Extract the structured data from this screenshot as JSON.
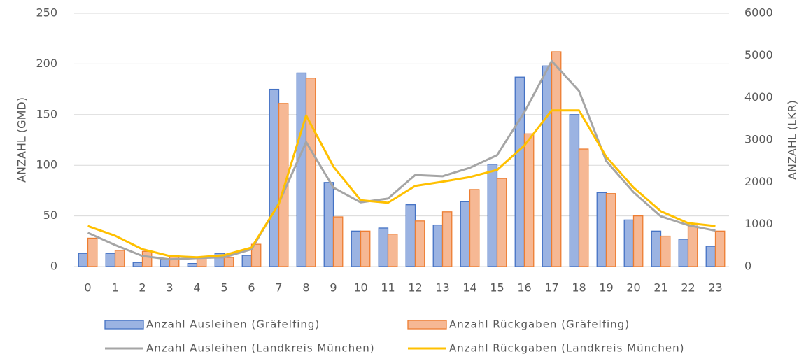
{
  "chart_data": {
    "type": "bar",
    "categories": [
      "0",
      "1",
      "2",
      "3",
      "4",
      "5",
      "6",
      "7",
      "8",
      "9",
      "10",
      "11",
      "12",
      "13",
      "14",
      "15",
      "16",
      "17",
      "18",
      "19",
      "20",
      "21",
      "22",
      "23"
    ],
    "series": [
      {
        "name": "Anzahl Ausleihen (Gräfelfing)",
        "type": "bar",
        "color": "#4472c4",
        "fill": "#9bb3e2",
        "values": [
          13,
          13,
          4,
          7,
          3,
          13,
          11,
          175,
          191,
          83,
          35,
          38,
          61,
          41,
          64,
          101,
          187,
          198,
          150,
          73,
          46,
          35,
          27,
          20
        ]
      },
      {
        "name": "Anzahl Rückgaben (Gräfelfing)",
        "type": "bar",
        "color": "#ed7d31",
        "fill": "#f6b894",
        "values": [
          28,
          16,
          15,
          11,
          9,
          9,
          22,
          161,
          186,
          49,
          35,
          32,
          45,
          54,
          76,
          87,
          131,
          212,
          116,
          72,
          50,
          30,
          40,
          35
        ]
      },
      {
        "name": "Anzahl Ausleihen (Landkreis München)",
        "type": "line",
        "axis": "y2",
        "color": "#a5a5a5",
        "values": [
          800,
          510,
          250,
          170,
          200,
          220,
          410,
          1500,
          2950,
          1870,
          1520,
          1610,
          2170,
          2140,
          2340,
          2640,
          3660,
          4870,
          4160,
          2500,
          1760,
          1190,
          980,
          850
        ]
      },
      {
        "name": "Anzahl Rückgaben (Landkreis München)",
        "type": "line",
        "axis": "y2",
        "color": "#ffc000",
        "values": [
          960,
          730,
          410,
          250,
          220,
          270,
          450,
          1480,
          3580,
          2370,
          1570,
          1510,
          1910,
          2010,
          2120,
          2290,
          2870,
          3700,
          3700,
          2600,
          1870,
          1310,
          1030,
          960
        ]
      }
    ],
    "ylabel": "ANZAHL (GMD)",
    "y2label": "ANZAHL (LKR)",
    "ylim": [
      0,
      250
    ],
    "yticks": [
      0,
      50,
      100,
      150,
      200,
      250
    ],
    "y2lim": [
      0,
      6000
    ],
    "y2ticks": [
      0,
      1000,
      2000,
      3000,
      4000,
      5000,
      6000
    ],
    "grid": true,
    "legend": "bottom"
  }
}
